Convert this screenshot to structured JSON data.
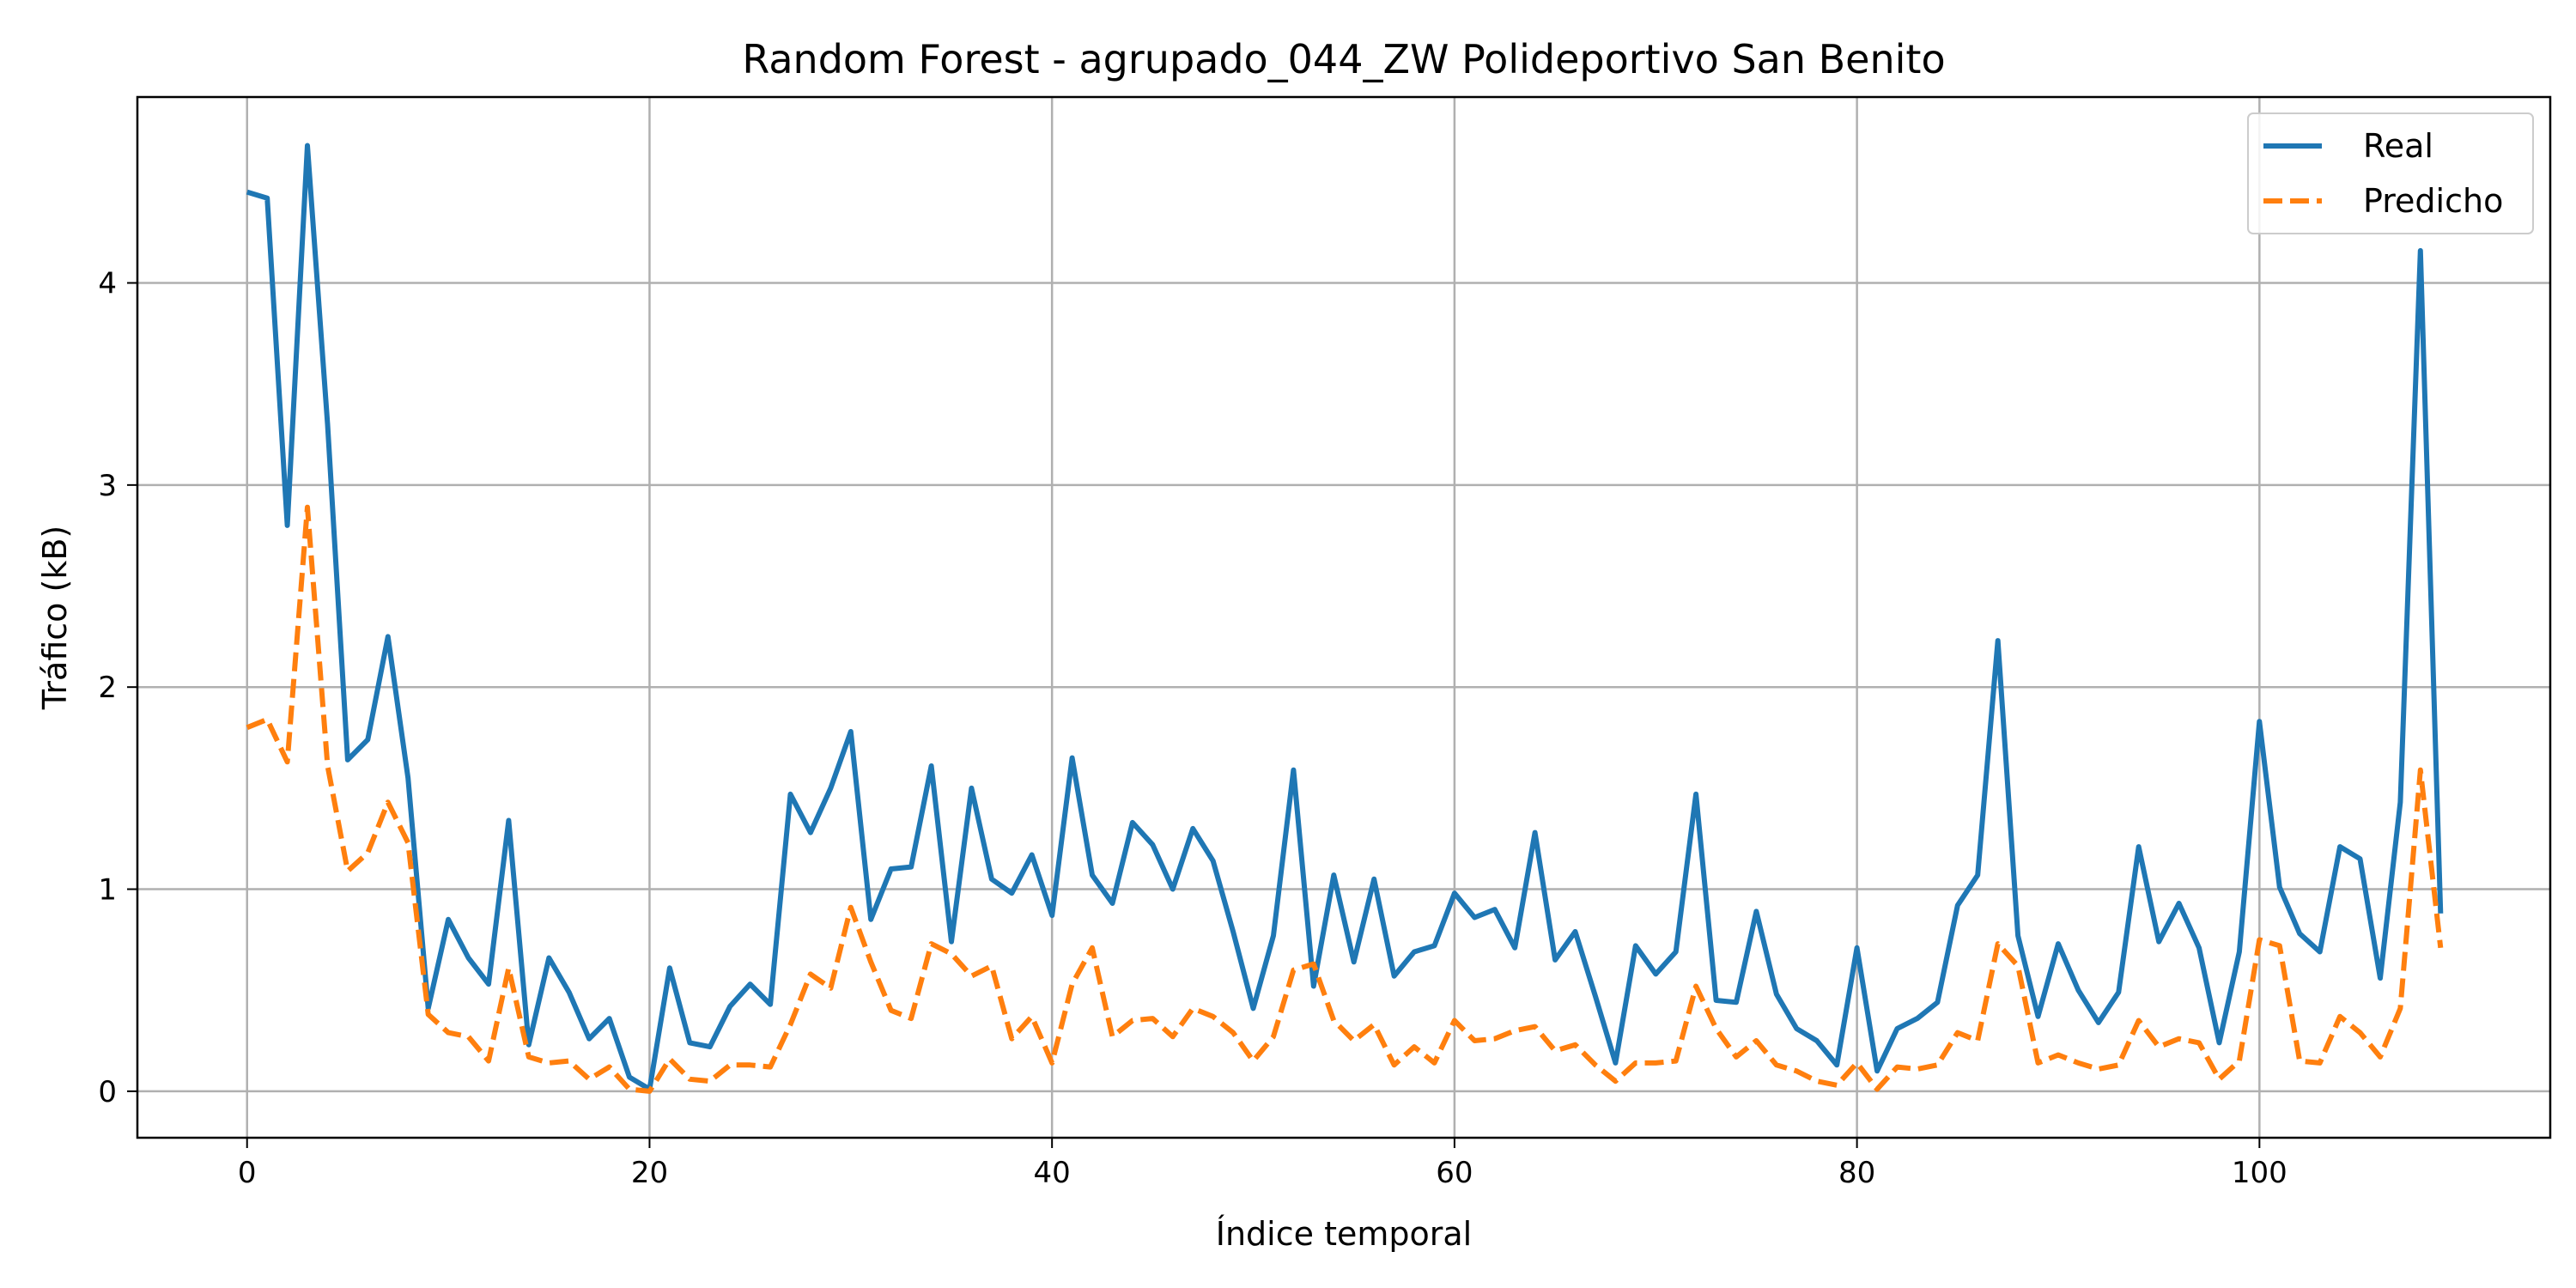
{
  "chart_data": {
    "type": "line",
    "title": "Random Forest - agrupado_044_ZW Polideportivo San Benito",
    "xlabel": "Índice temporal",
    "ylabel": "Tráfico (kB)",
    "xlim": [
      -5.45,
      114.45
    ],
    "ylim": [
      -0.23,
      4.92
    ],
    "xticks": [
      0,
      20,
      40,
      60,
      80,
      100
    ],
    "yticks": [
      0,
      1,
      2,
      3,
      4
    ],
    "grid": true,
    "legend_position": "top-right",
    "colors": {
      "Real": "#1f77b4",
      "Predicho": "#ff7f0e"
    },
    "series": [
      {
        "name": "Real",
        "style": "solid",
        "values": [
          4.45,
          4.42,
          2.8,
          4.68,
          3.3,
          1.64,
          1.74,
          2.25,
          1.55,
          0.41,
          0.85,
          0.66,
          0.53,
          1.34,
          0.23,
          0.66,
          0.49,
          0.26,
          0.36,
          0.07,
          0.01,
          0.61,
          0.24,
          0.22,
          0.42,
          0.53,
          0.43,
          1.47,
          1.28,
          1.5,
          1.78,
          0.85,
          1.1,
          1.11,
          1.61,
          0.74,
          1.5,
          1.05,
          0.98,
          1.17,
          0.87,
          1.65,
          1.07,
          0.93,
          1.33,
          1.22,
          1.0,
          1.3,
          1.14,
          0.79,
          0.41,
          0.77,
          1.59,
          0.52,
          1.07,
          0.64,
          1.05,
          0.57,
          0.69,
          0.72,
          0.98,
          0.86,
          0.9,
          0.71,
          1.28,
          0.65,
          0.79,
          0.47,
          0.14,
          0.72,
          0.58,
          0.69,
          1.47,
          0.45,
          0.44,
          0.89,
          0.48,
          0.31,
          0.25,
          0.13,
          0.71,
          0.1,
          0.31,
          0.36,
          0.44,
          0.92,
          1.07,
          2.23,
          0.77,
          0.37,
          0.73,
          0.5,
          0.34,
          0.49,
          1.21,
          0.74,
          0.93,
          0.71,
          0.24,
          0.69,
          1.83,
          1.01,
          0.78,
          0.69,
          1.21,
          1.15,
          0.56,
          1.43,
          4.16,
          0.88
        ]
      },
      {
        "name": "Predicho",
        "style": "dashed",
        "values": [
          1.8,
          1.84,
          1.63,
          2.89,
          1.61,
          1.09,
          1.18,
          1.43,
          1.23,
          0.38,
          0.29,
          0.27,
          0.15,
          0.61,
          0.17,
          0.14,
          0.15,
          0.06,
          0.12,
          0.01,
          0.0,
          0.16,
          0.06,
          0.05,
          0.13,
          0.13,
          0.12,
          0.33,
          0.58,
          0.51,
          0.91,
          0.64,
          0.4,
          0.36,
          0.73,
          0.68,
          0.57,
          0.62,
          0.26,
          0.37,
          0.14,
          0.53,
          0.71,
          0.27,
          0.35,
          0.36,
          0.27,
          0.41,
          0.37,
          0.29,
          0.15,
          0.27,
          0.6,
          0.63,
          0.35,
          0.25,
          0.33,
          0.13,
          0.22,
          0.14,
          0.35,
          0.25,
          0.26,
          0.3,
          0.32,
          0.2,
          0.23,
          0.13,
          0.05,
          0.14,
          0.14,
          0.15,
          0.52,
          0.31,
          0.17,
          0.25,
          0.13,
          0.1,
          0.05,
          0.03,
          0.14,
          0.01,
          0.12,
          0.11,
          0.13,
          0.29,
          0.25,
          0.73,
          0.62,
          0.14,
          0.18,
          0.14,
          0.11,
          0.13,
          0.35,
          0.22,
          0.26,
          0.24,
          0.06,
          0.15,
          0.75,
          0.72,
          0.15,
          0.14,
          0.37,
          0.29,
          0.17,
          0.41,
          1.59,
          0.71
        ]
      }
    ]
  }
}
